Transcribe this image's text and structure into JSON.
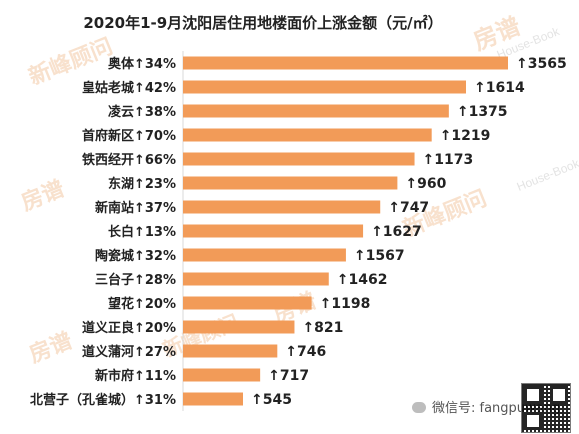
{
  "chart_data": {
    "type": "bar",
    "orientation": "horizontal",
    "title": "2020年1-9月沈阳居住用地楼面价上涨金额（元/㎡）",
    "categories": [
      "奥体↑34%",
      "皇姑老城↑42%",
      "凌云↑38%",
      "首府新区↑70%",
      "铁西经开↑66%",
      "东湖↑23%",
      "新南站↑37%",
      "长白↑13%",
      "陶瓷城↑32%",
      "三台子↑28%",
      "望花↑20%",
      "道义正良↑20%",
      "道义蒲河↑27%",
      "新市府↑11%",
      "北营子（孔雀城）↑31%"
    ],
    "value_labels": [
      "↑3565",
      "↑1614",
      "↑1375",
      "↑1219",
      "↑1173",
      "↑960",
      "↑747",
      "↑1627",
      "↑1567",
      "↑1462",
      "↑1198",
      "↑821",
      "↑746",
      "↑717",
      "↑545"
    ],
    "values": [
      3565,
      1614,
      1375,
      1219,
      1173,
      960,
      747,
      1627,
      1567,
      1462,
      1198,
      821,
      746,
      717,
      545
    ],
    "bar_color": "#F29B58",
    "xlabel": "",
    "ylabel": "",
    "grid": false,
    "legend": "none"
  },
  "watermarks": {
    "brand": "新峰顾问",
    "brand_en": "House-Book",
    "logo_text": "房谱"
  },
  "footer": {
    "wechat": "微信号: fangpuwang"
  }
}
